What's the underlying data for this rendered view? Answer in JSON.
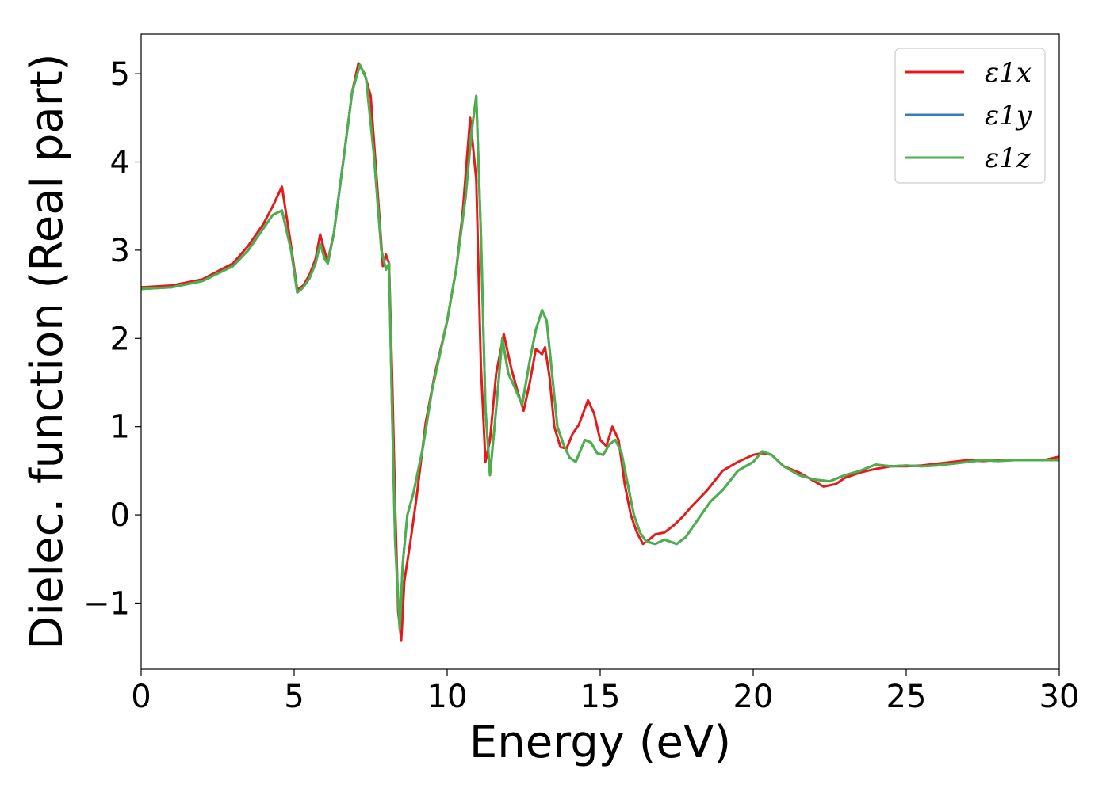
{
  "chart_data": {
    "type": "line",
    "xlabel": "Energy (eV)",
    "ylabel": "Dielec. function (Real part)",
    "xlim": [
      0,
      30
    ],
    "ylim": [
      -1.75,
      5.45
    ],
    "xticks": [
      0,
      5,
      10,
      15,
      20,
      25,
      30
    ],
    "xtick_labels": [
      "0",
      "5",
      "10",
      "15",
      "20",
      "25",
      "30"
    ],
    "yticks": [
      -1,
      0,
      1,
      2,
      3,
      4,
      5
    ],
    "ytick_labels": [
      "−1",
      "0",
      "1",
      "2",
      "3",
      "4",
      "5"
    ],
    "grid": false,
    "legend_position": "top-right",
    "series": [
      {
        "name": "ε1x",
        "color": "#e41a1c",
        "x": [
          0,
          1,
          2,
          3,
          3.5,
          4,
          4.3,
          4.6,
          4.9,
          5.1,
          5.3,
          5.5,
          5.7,
          5.85,
          6.0,
          6.1,
          6.3,
          6.6,
          6.9,
          7.1,
          7.3,
          7.5,
          7.7,
          7.9,
          8.0,
          8.1,
          8.2,
          8.3,
          8.4,
          8.5,
          8.6,
          8.8,
          9.0,
          9.3,
          9.6,
          10.0,
          10.3,
          10.5,
          10.75,
          10.95,
          11.1,
          11.25,
          11.4,
          11.6,
          11.85,
          12.1,
          12.3,
          12.5,
          12.7,
          12.9,
          13.1,
          13.2,
          13.35,
          13.5,
          13.7,
          13.9,
          14.1,
          14.3,
          14.6,
          14.8,
          15.0,
          15.2,
          15.4,
          15.6,
          15.8,
          16.0,
          16.2,
          16.4,
          16.6,
          16.8,
          17.1,
          17.4,
          17.7,
          18.0,
          18.5,
          19.0,
          19.5,
          20.0,
          20.3,
          20.6,
          21.0,
          21.5,
          22.0,
          22.3,
          22.7,
          23.0,
          23.5,
          24.0,
          24.5,
          25.0,
          25.5,
          26.0,
          26.5,
          27.0,
          27.5,
          28.0,
          28.5,
          29.0,
          29.5,
          30.0
        ],
        "y": [
          2.58,
          2.6,
          2.67,
          2.85,
          3.05,
          3.3,
          3.5,
          3.72,
          3.05,
          2.55,
          2.6,
          2.72,
          2.9,
          3.18,
          2.98,
          2.88,
          3.2,
          4.0,
          4.8,
          5.12,
          5.0,
          4.75,
          3.8,
          2.82,
          2.95,
          2.85,
          1.6,
          0.1,
          -1.1,
          -1.42,
          -0.75,
          -0.3,
          0.2,
          1.05,
          1.6,
          2.2,
          2.8,
          3.4,
          4.5,
          3.8,
          1.7,
          0.6,
          0.85,
          1.6,
          2.05,
          1.65,
          1.4,
          1.18,
          1.5,
          1.88,
          1.82,
          1.9,
          1.55,
          1.0,
          0.77,
          0.75,
          0.92,
          1.02,
          1.3,
          1.15,
          0.85,
          0.78,
          1.0,
          0.85,
          0.35,
          0.0,
          -0.2,
          -0.33,
          -0.28,
          -0.22,
          -0.2,
          -0.12,
          -0.02,
          0.1,
          0.28,
          0.5,
          0.6,
          0.68,
          0.7,
          0.68,
          0.55,
          0.48,
          0.38,
          0.32,
          0.35,
          0.42,
          0.48,
          0.52,
          0.55,
          0.55,
          0.56,
          0.58,
          0.6,
          0.62,
          0.61,
          0.62,
          0.62,
          0.62,
          0.62,
          0.66
        ]
      },
      {
        "name": "ε1y",
        "color": "#377eb8",
        "x": [
          0,
          1,
          2,
          3,
          3.5,
          4,
          4.3,
          4.6,
          4.9,
          5.1,
          5.3,
          5.5,
          5.7,
          5.85,
          6.0,
          6.1,
          6.3,
          6.6,
          6.9,
          7.15,
          7.35,
          7.6,
          7.85,
          8.0,
          8.1,
          8.2,
          8.3,
          8.45,
          8.55,
          8.7,
          8.9,
          9.2,
          9.5,
          10.0,
          10.3,
          10.6,
          10.8,
          10.95,
          11.1,
          11.25,
          11.4,
          11.6,
          11.8,
          12.0,
          12.2,
          12.45,
          12.7,
          12.9,
          13.1,
          13.25,
          13.4,
          13.6,
          13.8,
          14.0,
          14.2,
          14.5,
          14.7,
          14.9,
          15.1,
          15.3,
          15.5,
          15.7,
          15.9,
          16.1,
          16.3,
          16.5,
          16.8,
          17.1,
          17.5,
          17.8,
          18.2,
          18.6,
          19.0,
          19.5,
          20.0,
          20.3,
          20.6,
          21.0,
          21.5,
          22.0,
          22.5,
          23.0,
          23.5,
          24.0,
          24.5,
          25.0,
          25.5,
          26.0,
          26.5,
          27.0,
          27.5,
          28.0,
          28.5,
          29.0,
          29.5,
          30.0
        ],
        "y": [
          2.56,
          2.58,
          2.65,
          2.82,
          3.0,
          3.25,
          3.4,
          3.45,
          3.0,
          2.52,
          2.58,
          2.68,
          2.85,
          3.07,
          2.9,
          2.85,
          3.2,
          4.0,
          4.8,
          5.1,
          4.95,
          4.1,
          3.0,
          2.78,
          2.85,
          1.2,
          -0.3,
          -1.3,
          -0.55,
          0.0,
          0.25,
          0.75,
          1.4,
          2.2,
          2.8,
          3.6,
          4.35,
          4.75,
          3.2,
          1.2,
          0.45,
          1.2,
          2.0,
          1.6,
          1.45,
          1.25,
          1.75,
          2.1,
          2.32,
          2.2,
          1.7,
          1.0,
          0.8,
          0.65,
          0.6,
          0.85,
          0.82,
          0.7,
          0.68,
          0.8,
          0.85,
          0.7,
          0.35,
          0.0,
          -0.2,
          -0.3,
          -0.33,
          -0.28,
          -0.33,
          -0.25,
          -0.05,
          0.15,
          0.28,
          0.5,
          0.6,
          0.72,
          0.68,
          0.55,
          0.45,
          0.4,
          0.38,
          0.45,
          0.5,
          0.57,
          0.55,
          0.56,
          0.55,
          0.56,
          0.58,
          0.6,
          0.62,
          0.61,
          0.62,
          0.62,
          0.62,
          0.62
        ]
      },
      {
        "name": "ε1z",
        "color": "#4daf4a",
        "x": [
          0,
          1,
          2,
          3,
          3.5,
          4,
          4.3,
          4.6,
          4.9,
          5.1,
          5.3,
          5.5,
          5.7,
          5.85,
          6.0,
          6.1,
          6.3,
          6.6,
          6.9,
          7.15,
          7.35,
          7.6,
          7.85,
          8.0,
          8.1,
          8.2,
          8.3,
          8.45,
          8.55,
          8.7,
          8.9,
          9.2,
          9.5,
          10.0,
          10.3,
          10.6,
          10.8,
          10.95,
          11.1,
          11.25,
          11.4,
          11.6,
          11.8,
          12.0,
          12.2,
          12.45,
          12.7,
          12.9,
          13.1,
          13.25,
          13.4,
          13.6,
          13.8,
          14.0,
          14.2,
          14.5,
          14.7,
          14.9,
          15.1,
          15.3,
          15.5,
          15.7,
          15.9,
          16.1,
          16.3,
          16.5,
          16.8,
          17.1,
          17.5,
          17.8,
          18.2,
          18.6,
          19.0,
          19.5,
          20.0,
          20.3,
          20.6,
          21.0,
          21.5,
          22.0,
          22.5,
          23.0,
          23.5,
          24.0,
          24.5,
          25.0,
          25.5,
          26.0,
          26.5,
          27.0,
          27.5,
          28.0,
          28.5,
          29.0,
          29.5,
          30.0
        ],
        "y": [
          2.56,
          2.58,
          2.65,
          2.82,
          3.0,
          3.25,
          3.4,
          3.45,
          3.0,
          2.52,
          2.58,
          2.68,
          2.85,
          3.07,
          2.9,
          2.85,
          3.2,
          4.0,
          4.8,
          5.1,
          4.95,
          4.1,
          3.0,
          2.78,
          2.85,
          1.2,
          -0.3,
          -1.3,
          -0.55,
          0.0,
          0.25,
          0.75,
          1.4,
          2.2,
          2.8,
          3.6,
          4.35,
          4.75,
          3.2,
          1.2,
          0.45,
          1.2,
          2.0,
          1.6,
          1.45,
          1.25,
          1.75,
          2.1,
          2.32,
          2.2,
          1.7,
          1.0,
          0.8,
          0.65,
          0.6,
          0.85,
          0.82,
          0.7,
          0.68,
          0.8,
          0.85,
          0.7,
          0.35,
          0.0,
          -0.2,
          -0.3,
          -0.33,
          -0.28,
          -0.33,
          -0.25,
          -0.05,
          0.15,
          0.28,
          0.5,
          0.6,
          0.72,
          0.68,
          0.55,
          0.45,
          0.4,
          0.38,
          0.45,
          0.5,
          0.57,
          0.55,
          0.56,
          0.55,
          0.56,
          0.58,
          0.6,
          0.62,
          0.61,
          0.62,
          0.62,
          0.62,
          0.62
        ]
      }
    ]
  }
}
